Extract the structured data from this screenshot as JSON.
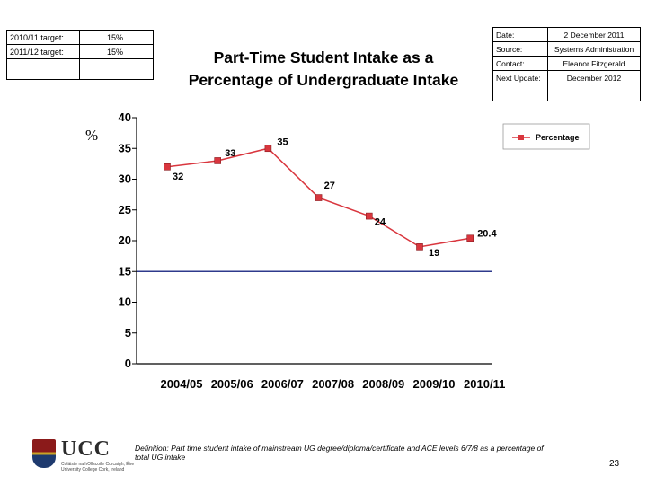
{
  "targets": [
    {
      "label": "2010/11 target:",
      "value": "15%"
    },
    {
      "label": "2011/12 target:",
      "value": "15%"
    },
    {
      "label": "",
      "value": ""
    }
  ],
  "meta": [
    {
      "label": "Date:",
      "value": "2 December 2011"
    },
    {
      "label": "Source:",
      "value": "Systems Administration"
    },
    {
      "label": "Contact:",
      "value": "Eleanor Fitzgerald"
    },
    {
      "label": "Next Update:",
      "value": "December 2012"
    }
  ],
  "title_line1": "Part-Time Student Intake as a",
  "title_line2": "Percentage of Undergraduate Intake",
  "percent_sign": "%",
  "colors": {
    "series": "#d9363e",
    "target": "#2e3a8c",
    "axis": "#000000"
  },
  "chart_data": {
    "type": "line",
    "title": "Part-Time Student Intake as a Percentage of Undergraduate Intake",
    "categories": [
      "2004/05",
      "2005/06",
      "2006/07",
      "2007/08",
      "2008/09",
      "2009/10",
      "2010/11"
    ],
    "series": [
      {
        "name": "Percentage",
        "values": [
          32,
          33,
          35,
          27,
          24,
          19,
          20.4
        ],
        "labels": [
          "32",
          "33",
          "35",
          "27",
          "24",
          "19",
          "20.4"
        ]
      }
    ],
    "target_line": 15,
    "ylim": [
      0,
      40
    ],
    "yticks": [
      0,
      5,
      10,
      15,
      20,
      25,
      30,
      35,
      40
    ],
    "grid": false,
    "legend": "top-right"
  },
  "logo": {
    "text": "UCC",
    "sub1": "Coláiste na hOllscoile Corcaigh, Éire",
    "sub2": "University College Cork, Ireland"
  },
  "definition": "Definition: Part time student intake of mainstream UG degree/diploma/certificate and ACE levels 6/7/8 as a percentage of total UG intake",
  "page_number": "23"
}
